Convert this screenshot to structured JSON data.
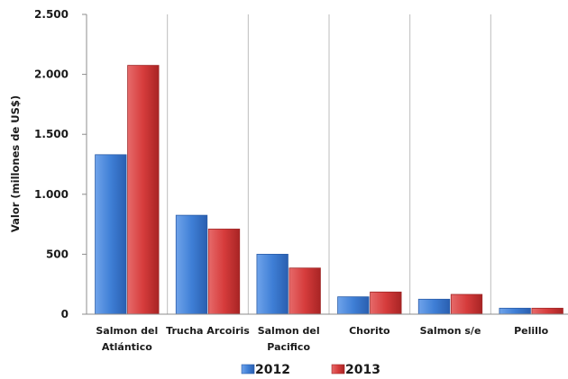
{
  "chart_data": {
    "type": "bar",
    "title": "",
    "xlabel": "",
    "ylabel": "Valor (millones de US$)",
    "ylim": [
      0,
      2500
    ],
    "yticks": [
      0,
      500,
      1000,
      1500,
      2000,
      2500
    ],
    "ytick_labels": [
      "0",
      "500",
      "1.000",
      "1.500",
      "2.000",
      "2.500"
    ],
    "grid": "vertical separators",
    "legend": "bottom",
    "categories": [
      [
        "Salmon del",
        "Atlántico"
      ],
      [
        "Trucha Arcoiris"
      ],
      [
        "Salmon del",
        "Pacifico"
      ],
      [
        "Chorito"
      ],
      [
        "Salmon s/e"
      ],
      [
        "Pelillo"
      ]
    ],
    "series": [
      {
        "name": "2012",
        "color": "#3f7fd6",
        "values": [
          1330,
          825,
          500,
          145,
          125,
          50
        ]
      },
      {
        "name": "2013",
        "color": "#d63c3c",
        "values": [
          2075,
          710,
          385,
          185,
          165,
          50
        ]
      }
    ]
  }
}
